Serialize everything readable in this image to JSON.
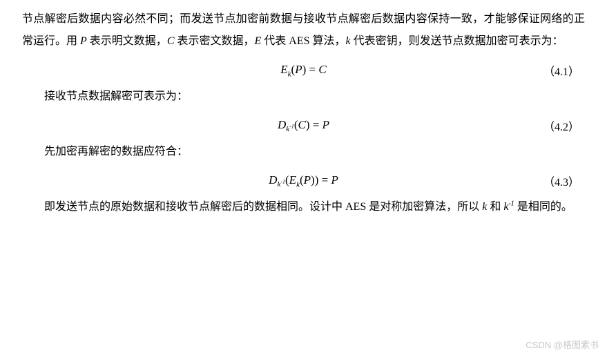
{
  "paragraphs": {
    "p1_prefix": "节点解密后数据内容必然不同；而发送节点加密前数据与接收节点解密后数据内容保持一致，才能够保证网络的正常运行。用 ",
    "p1_P": "P",
    "p1_mid1": " 表示明文数据，",
    "p1_C": "C",
    "p1_mid2": " 表示密文数据，",
    "p1_E": "E",
    "p1_mid3": " 代表 AES 算法，",
    "p1_k": "k",
    "p1_suffix": " 代表密钥，则发送节点数据加密可表示为：",
    "p2": "接收节点数据解密可表示为：",
    "p3": "先加密再解密的数据应符合：",
    "p4_prefix": "即发送节点的原始数据和接收节点解密后的数据相同。设计中 AES 是对称加密算法，所以 ",
    "p4_k1": "k",
    "p4_mid": " 和 ",
    "p4_k2": "k",
    "p4_sup": "-1",
    "p4_suffix": " 是相同的。"
  },
  "equations": {
    "eq1": {
      "E": "E",
      "sub": "k",
      "open": "(",
      "P": "P",
      "close": ")",
      "eq": " = ",
      "C": "C",
      "num": "（4.1）"
    },
    "eq2": {
      "D": "D",
      "sub_k": "k",
      "sub_exp": "-1",
      "open": "(",
      "C": "C",
      "close": ")",
      "eq": " = ",
      "P": "P",
      "num": "（4.2）"
    },
    "eq3": {
      "D": "D",
      "sub_k": "k",
      "sub_exp": "-1",
      "open1": "(",
      "E": "E",
      "sub_k2": "k",
      "open2": "(",
      "P1": "P",
      "close2": ")",
      "close1": ")",
      "eq": " = ",
      "P2": "P",
      "num": "（4.3）"
    }
  },
  "watermark": "CSDN @格图素书",
  "colors": {
    "text": "#000000",
    "background": "#ffffff",
    "watermark": "#c8c8c8"
  },
  "typography": {
    "body_fontsize": 16,
    "eq_fontsize": 17,
    "line_height": 2.0,
    "font_family_cn": "SimSun",
    "font_family_math": "Times New Roman"
  }
}
